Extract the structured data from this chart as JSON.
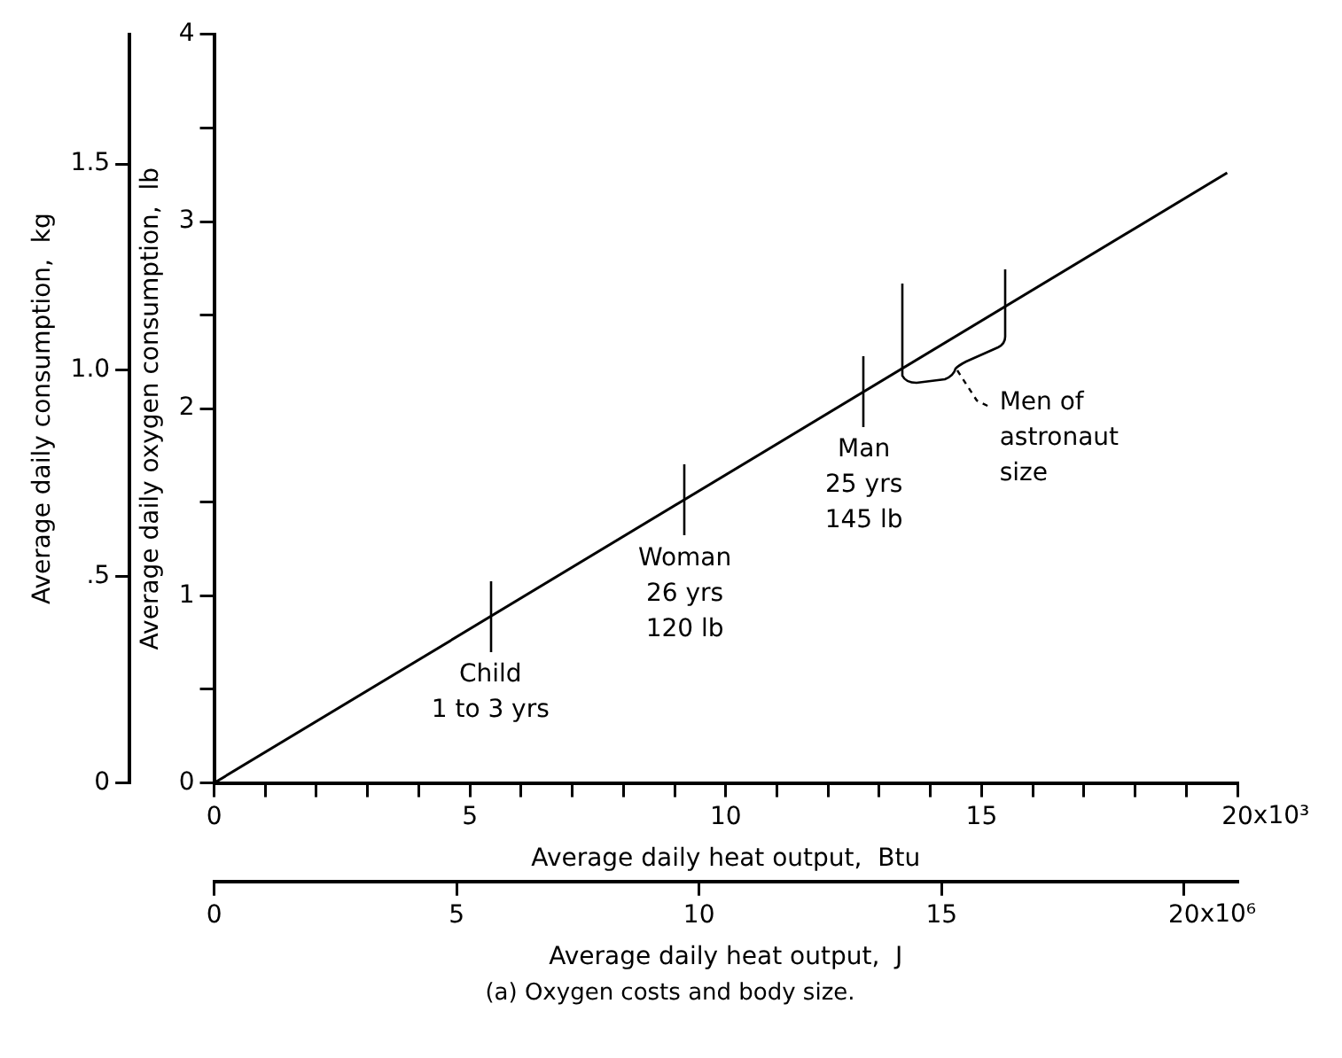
{
  "chart_data": {
    "type": "line",
    "xlabel": "Average daily heat output,  Btu",
    "ylabel": "Average daily oxygen consumption,  lb",
    "y2label": "Average daily consumption,  kg",
    "x2label": "Average daily heat output,  J",
    "series": [
      {
        "x": [
          0,
          19.8
        ],
        "values": [
          0,
          3.26
        ],
        "color": "#000000"
      }
    ],
    "xlim": [
      0,
      20
    ],
    "xticks": [
      0,
      {
        "value": 1,
        "label": null
      },
      {
        "value": 2,
        "label": null
      },
      {
        "value": 3,
        "label": null
      },
      {
        "value": 4,
        "label": null
      },
      5,
      {
        "value": 6,
        "label": null
      },
      {
        "value": 7,
        "label": null
      },
      {
        "value": 8,
        "label": null
      },
      {
        "value": 9,
        "label": null
      },
      10,
      {
        "value": 11,
        "label": null
      },
      {
        "value": 12,
        "label": null
      },
      {
        "value": 13,
        "label": null
      },
      {
        "value": 14,
        "label": null
      },
      15,
      {
        "value": 16,
        "label": null
      },
      {
        "value": 17,
        "label": null
      },
      {
        "value": 18,
        "label": null
      },
      {
        "value": 19,
        "label": null
      },
      20
    ],
    "ylim": [
      0,
      4
    ],
    "yticks": [
      0,
      {
        "value": 0.5,
        "label": null
      },
      1,
      {
        "value": 1.5,
        "label": null
      },
      2,
      {
        "value": 2.5,
        "label": null
      },
      3,
      {
        "value": 3.5,
        "label": null
      },
      4
    ],
    "y2lim": [
      0,
      1.814
    ],
    "y2ticks": [
      0,
      {
        "value": 0.5,
        "label": ".5"
      },
      {
        "value": 1,
        "label": "1.0"
      },
      1.5
    ],
    "x2lim": [
      0,
      21.1
    ],
    "x2ticks": [
      0,
      5,
      10,
      15,
      20
    ],
    "annotations": [
      "x10³",
      "x10⁶",
      {
        "text": "Child\n1 to 3 yrs",
        "x": 5.4,
        "y": 0.89
      },
      {
        "text": "Woman\n26 yrs\n120 lb",
        "x": 9.2,
        "y": 1.51
      },
      {
        "text": "Man\n25 yrs\n145 lb",
        "x": 12.7,
        "y": 2.09
      },
      {
        "text": "Men of\nastronaut\nsize",
        "x": 14.45,
        "y": 2.38
      },
      "(a) Oxygen costs and body size."
    ],
    "marker": "none",
    "line_style": "solid",
    "grid": false,
    "legend": false
  }
}
